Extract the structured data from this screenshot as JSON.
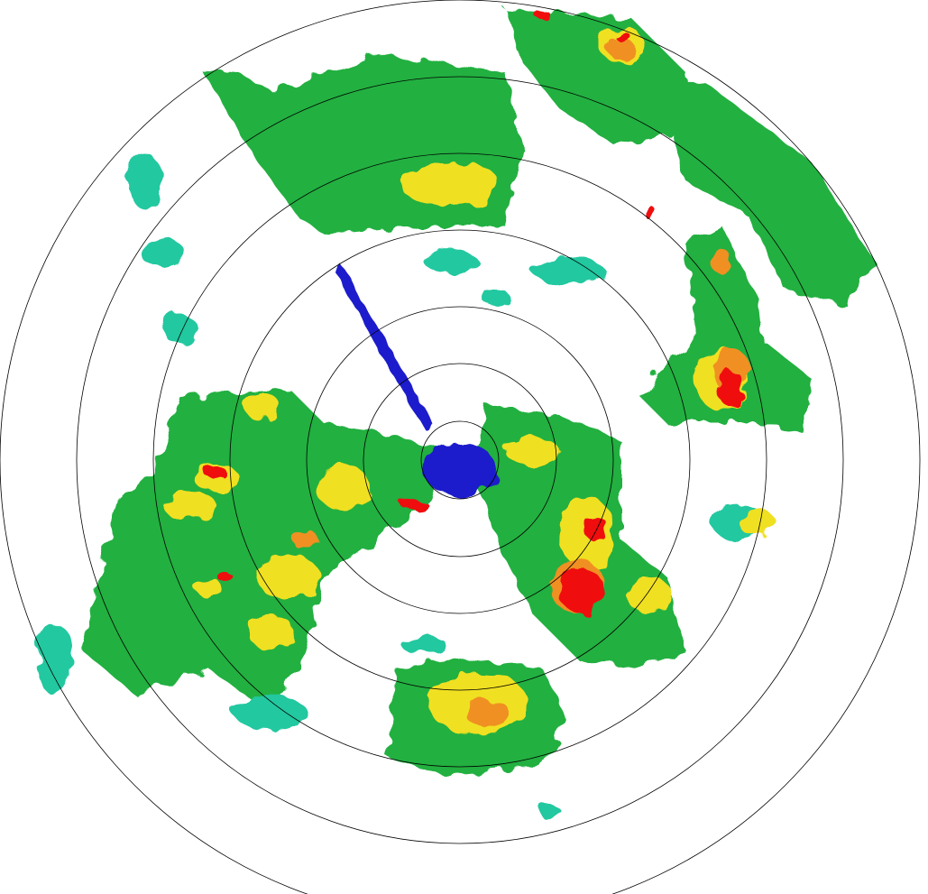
{
  "radar": {
    "range_ring_count": 7,
    "reflectivity_colors": {
      "weak": "#1a1acc",
      "light": "#20c8a0",
      "moderate": "#22b040",
      "bright_green": "#30e040",
      "yellow": "#f0e020",
      "orange": "#f09020",
      "red": "#f01010"
    },
    "ring_color": "#000000",
    "background": "#ffffff"
  }
}
